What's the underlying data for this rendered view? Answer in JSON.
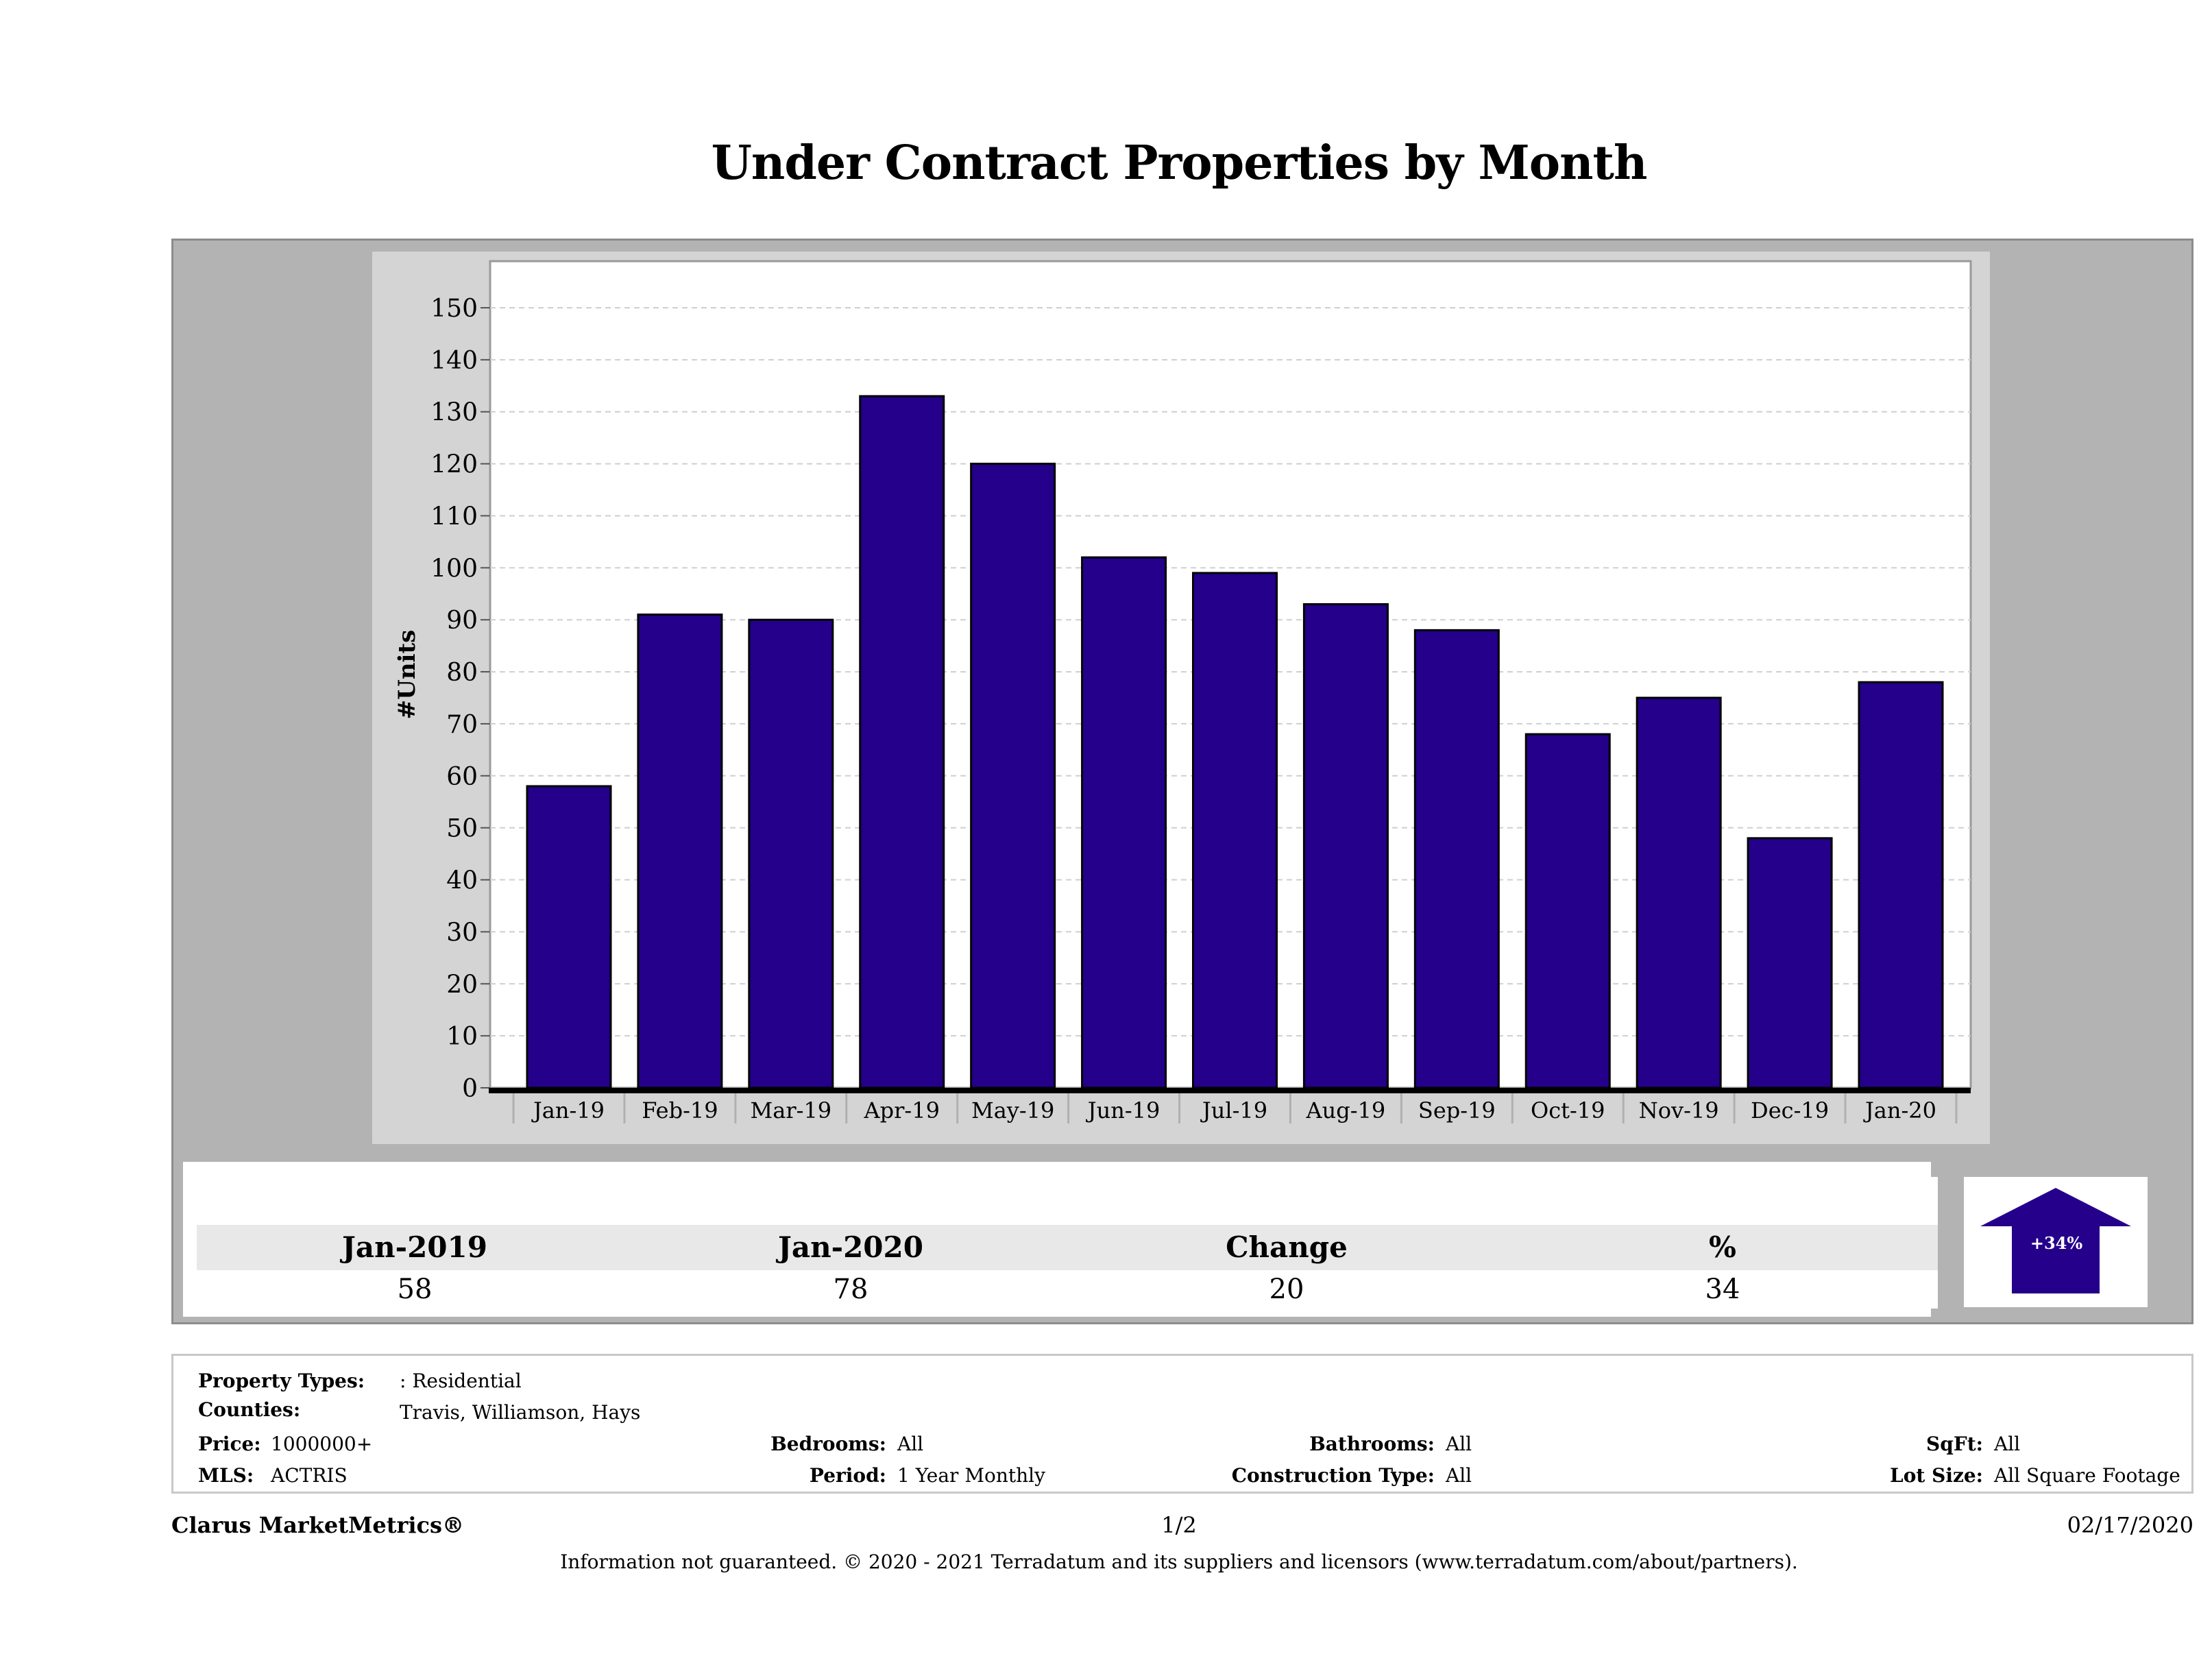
{
  "title": "Under Contract Properties by Month",
  "chart_data": {
    "type": "bar",
    "ylabel": "#Units",
    "xlabel": "",
    "categories": [
      "Jan-19",
      "Feb-19",
      "Mar-19",
      "Apr-19",
      "May-19",
      "Jun-19",
      "Jul-19",
      "Aug-19",
      "Sep-19",
      "Oct-19",
      "Nov-19",
      "Dec-19",
      "Jan-20"
    ],
    "values": [
      58,
      91,
      90,
      133,
      120,
      102,
      99,
      93,
      88,
      68,
      75,
      48,
      78
    ],
    "ylim": [
      0,
      160
    ],
    "yticks": [
      0,
      10,
      20,
      30,
      40,
      50,
      60,
      70,
      80,
      90,
      100,
      110,
      120,
      130,
      140,
      150
    ],
    "grid": true,
    "bar_color": "#24008b"
  },
  "summary": {
    "headers": [
      "Jan-2019",
      "Jan-2020",
      "Change",
      "%"
    ],
    "values": [
      "58",
      "78",
      "20",
      "34"
    ],
    "badge": "+34%",
    "badge_color": "#24008b"
  },
  "filters": {
    "property_types_label": "Property Types:",
    "property_types_value": ": Residential",
    "counties_label": "Counties:",
    "counties_value": "Travis, Williamson, Hays",
    "price_label": "Price:",
    "price_value": "1000000+",
    "mls_label": "MLS:",
    "mls_value": "ACTRIS",
    "bedrooms_label": "Bedrooms:",
    "bedrooms_value": "All",
    "period_label": "Period:",
    "period_value": "1 Year Monthly",
    "bathrooms_label": "Bathrooms:",
    "bathrooms_value": "All",
    "construction_label": "Construction Type:",
    "construction_value": "All",
    "sqft_label": "SqFt:",
    "sqft_value": "All",
    "lotsize_label": "Lot Size:",
    "lotsize_value": "All Square Footage"
  },
  "footer": {
    "brand": "Clarus MarketMetrics®",
    "page": "1/2",
    "date": "02/17/2020",
    "disclaimer": "Information not guaranteed. © 2020 - 2021 Terradatum and its suppliers and licensors (www.terradatum.com/about/partners)."
  }
}
